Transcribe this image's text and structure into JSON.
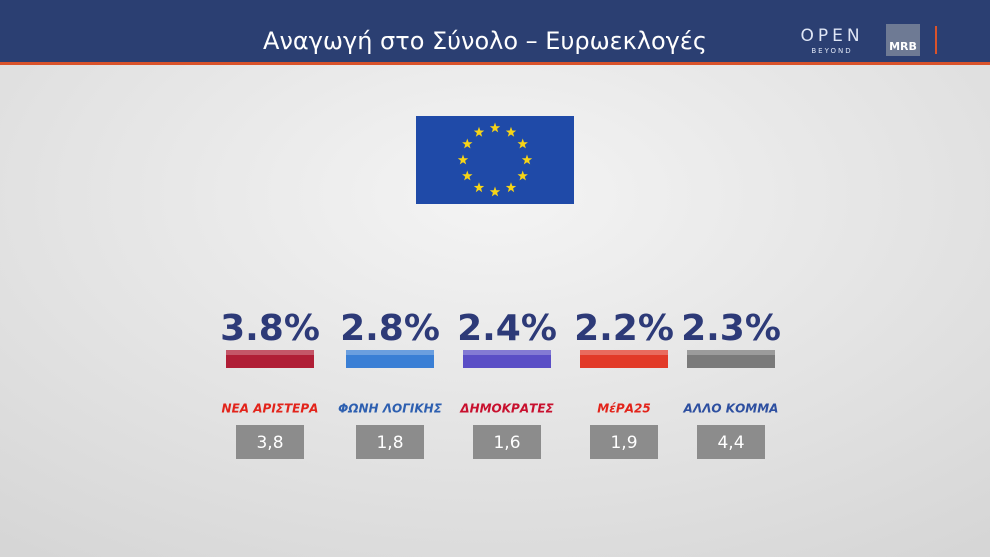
{
  "header": {
    "title": "Αναγωγή στο Σύνολο – Ευρωεκλογές",
    "brand": "OPEN",
    "brand_sub": "BEYOND",
    "pollster": "MRB"
  },
  "chart_data": {
    "type": "bar",
    "categories": [
      "ΝΕΑ ΑΡΙΣΤΕΡΑ",
      "ΦΩΝΗ ΛΟΓΙΚΗΣ",
      "ΔΗΜΟΚΡΑΤΕΣ",
      "ΜέΡΑ25",
      "ΑΛΛΟ ΚΟΜΜΑ"
    ],
    "category_colors": [
      "#e2231a",
      "#2d5fb0",
      "#c8102e",
      "#e2231a",
      "#2d4fa0"
    ],
    "series": [
      {
        "colors": [
          "#b01e36",
          "#3a7fd5",
          "#5a4ec6",
          "#e23a28",
          "#7a7a7a"
        ],
        "values": [
          3.8,
          2.8,
          2.4,
          2.2,
          2.3
        ],
        "value_labels": [
          "3.8%",
          "2.8%",
          "2.4%",
          "2.2%",
          "2.3%"
        ]
      },
      {
        "color": "#8c8c8c",
        "values": [
          3.8,
          1.8,
          1.6,
          1.9,
          4.4
        ],
        "value_labels": [
          "3,8",
          "1,8",
          "1,6",
          "1,9",
          "4,4"
        ]
      }
    ]
  }
}
